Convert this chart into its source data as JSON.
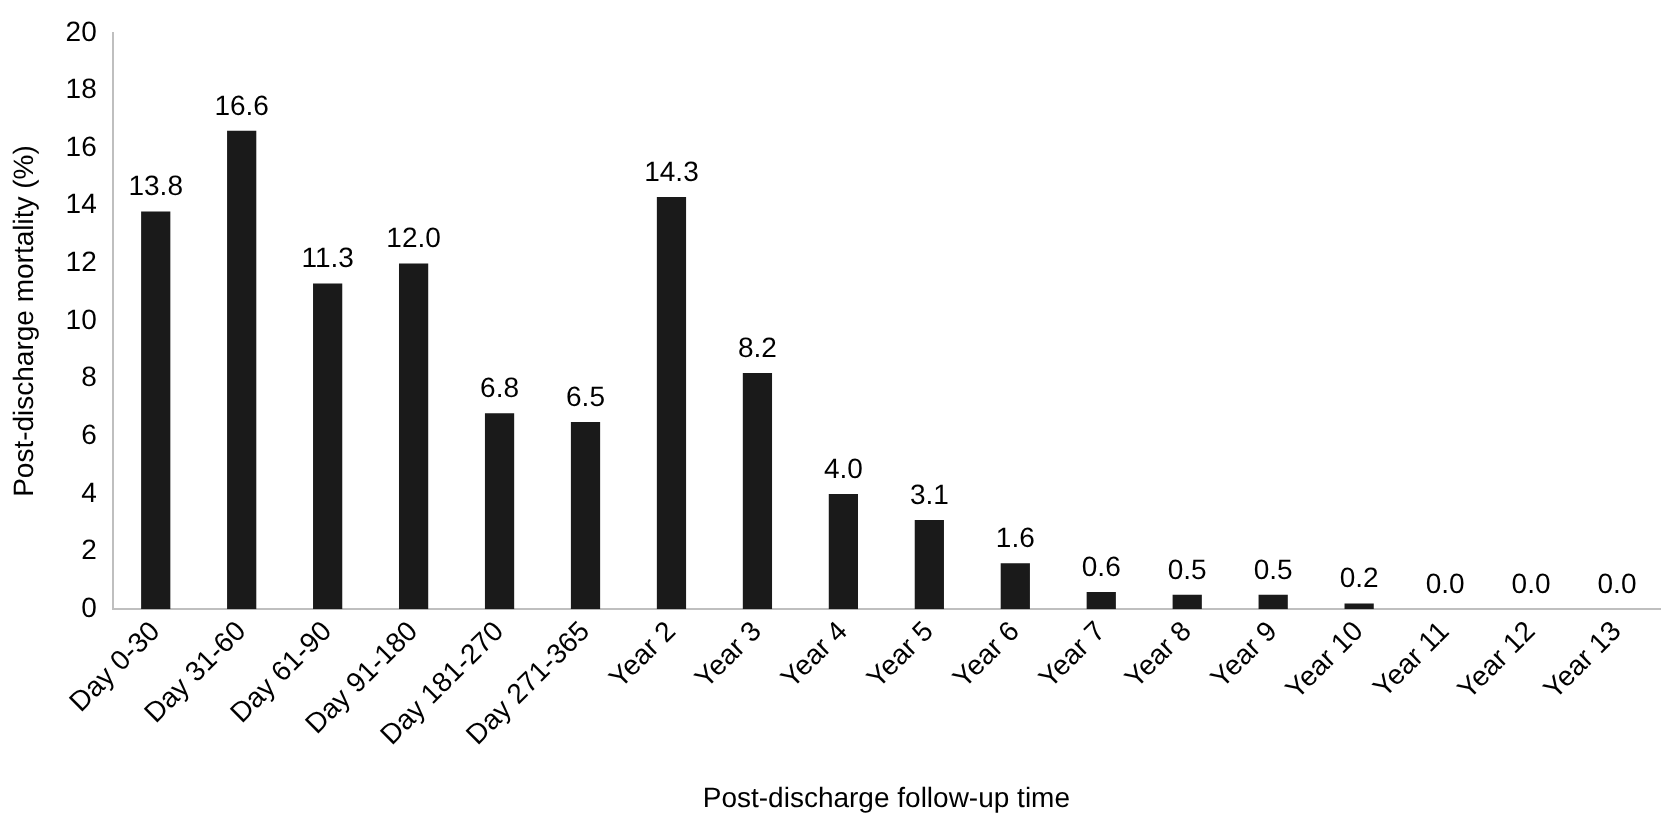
{
  "chart_data": {
    "type": "bar",
    "xlabel": "Post-discharge follow-up time",
    "ylabel": "Post-discharge mortality (%)",
    "categories": [
      "Day 0-30",
      "Day 31-60",
      "Day 61-90",
      "Day 91-180",
      "Day 181-270",
      "Day 271-365",
      "Year 2",
      "Year 3",
      "Year 4",
      "Year 5",
      "Year 6",
      "Year 7",
      "Year 8",
      "Year 9",
      "Year 10",
      "Year 11",
      "Year 12",
      "Year 13"
    ],
    "values": [
      13.8,
      16.6,
      11.3,
      12.0,
      6.8,
      6.5,
      14.3,
      8.2,
      4.0,
      3.1,
      1.6,
      0.6,
      0.5,
      0.5,
      0.2,
      0.0,
      0.0,
      0.0
    ],
    "value_labels": [
      "13.8",
      "16.6",
      "11.3",
      "12.0",
      "6.8",
      "6.5",
      "14.3",
      "8.2",
      "4.0",
      "3.1",
      "1.6",
      "0.6",
      "0.5",
      "0.5",
      "0.2",
      "0.0",
      "0.0",
      "0.0"
    ],
    "color": "#1a1a1a",
    "ylim": [
      0,
      20
    ],
    "yticks": [
      0,
      2,
      4,
      6,
      8,
      10,
      12,
      14,
      16,
      18,
      20
    ],
    "grid": false,
    "legend": false
  }
}
